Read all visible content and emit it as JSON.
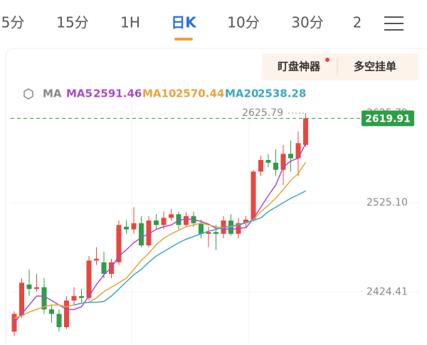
{
  "tabs": [
    "5分",
    "15分",
    "1H",
    "日K",
    "10分",
    "30分",
    "2"
  ],
  "active_tab": 3,
  "buttons": [
    "盯盘神器",
    "多空挂单"
  ],
  "chart_data": {
    "type": "candlestick",
    "legend_title": "MA",
    "up_color": "#e8473f",
    "down_color": "#2e9d48",
    "open": [
      2380,
      2398,
      2433,
      2428,
      2430,
      2405,
      2400,
      2385,
      2415,
      2420,
      2418,
      2460,
      2458,
      2445,
      2458,
      2498,
      2495,
      2502,
      2477,
      2505,
      2500,
      2508,
      2512,
      2500,
      2510,
      2502,
      2490,
      2492,
      2490,
      2505,
      2490,
      2502,
      2506,
      2560,
      2573,
      2570,
      2562,
      2580,
      2575,
      2590
    ],
    "high": [
      2403,
      2440,
      2450,
      2445,
      2440,
      2410,
      2405,
      2420,
      2430,
      2428,
      2465,
      2475,
      2470,
      2462,
      2505,
      2505,
      2520,
      2510,
      2510,
      2512,
      2515,
      2518,
      2515,
      2514,
      2515,
      2506,
      2498,
      2500,
      2510,
      2512,
      2508,
      2510,
      2562,
      2578,
      2580,
      2585,
      2590,
      2595,
      2605,
      2625.79
    ],
    "low": [
      2375,
      2395,
      2420,
      2425,
      2400,
      2390,
      2380,
      2383,
      2410,
      2412,
      2415,
      2455,
      2440,
      2440,
      2455,
      2490,
      2490,
      2475,
      2475,
      2495,
      2495,
      2505,
      2495,
      2498,
      2498,
      2485,
      2475,
      2472,
      2485,
      2488,
      2485,
      2498,
      2504,
      2555,
      2565,
      2555,
      2545,
      2560,
      2555,
      2588
    ],
    "close": [
      2400,
      2435,
      2428,
      2430,
      2405,
      2400,
      2385,
      2415,
      2420,
      2418,
      2460,
      2462,
      2445,
      2458,
      2500,
      2495,
      2502,
      2477,
      2505,
      2500,
      2508,
      2512,
      2500,
      2510,
      2502,
      2490,
      2492,
      2490,
      2505,
      2490,
      2502,
      2506,
      2560,
      2573,
      2570,
      2562,
      2580,
      2575,
      2592,
      2619.91
    ],
    "series": [
      {
        "name": "MA5",
        "last": 2591.46,
        "color": "#b048c8",
        "values": [
          2390,
          2400,
          2410,
          2420,
          2420,
          2415,
          2410,
          2405,
          2405,
          2408,
          2420,
          2433,
          2444,
          2452,
          2465,
          2472,
          2480,
          2486,
          2490,
          2495,
          2498,
          2500,
          2505,
          2507,
          2506,
          2504,
          2501,
          2496,
          2496,
          2495,
          2496,
          2497,
          2507,
          2520,
          2533,
          2545,
          2565,
          2572,
          2575,
          2591.46
        ]
      },
      {
        "name": "MA10",
        "last": 2570.44,
        "color": "#e8a43c",
        "values": [
          2395,
          2398,
          2402,
          2405,
          2408,
          2410,
          2410,
          2408,
          2410,
          2412,
          2413,
          2418,
          2425,
          2430,
          2435,
          2440,
          2450,
          2460,
          2468,
          2478,
          2485,
          2490,
          2494,
          2498,
          2500,
          2502,
          2500,
          2498,
          2497,
          2498,
          2500,
          2502,
          2506,
          2515,
          2522,
          2530,
          2540,
          2550,
          2558,
          2570.44
        ]
      },
      {
        "name": "MA20",
        "last": 2538.28,
        "color": "#3aa8cc",
        "values": [
          null,
          null,
          null,
          null,
          null,
          null,
          null,
          null,
          2410,
          2412,
          2413,
          2413,
          2414,
          2420,
          2428,
          2436,
          2444,
          2450,
          2458,
          2465,
          2470,
          2475,
          2480,
          2484,
          2487,
          2490,
          2493,
          2495,
          2497,
          2499,
          2500,
          2503,
          2505,
          2508,
          2515,
          2520,
          2525,
          2530,
          2534,
          2538.28
        ]
      }
    ],
    "ylim": [
      2365,
      2641
    ],
    "yticks": [
      2424.41,
      {
        "value": 2525.1,
        "label": "2525.10"
      },
      2625.79
    ],
    "last_price_color": "#2e9d48"
  }
}
